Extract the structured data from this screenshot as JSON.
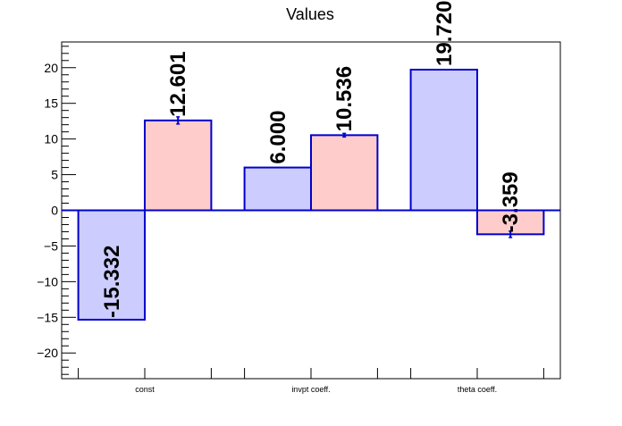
{
  "chart_data": {
    "type": "bar",
    "title": "Values",
    "categories": [
      "const",
      "invpt coeff.",
      "theta coeff."
    ],
    "series": [
      {
        "values": [
          -15.332,
          6.0,
          19.72
        ],
        "labels": [
          "-15.332",
          "6.000",
          "19.720"
        ],
        "errors": [
          0,
          0,
          0
        ],
        "fill": "#ccccff"
      },
      {
        "values": [
          12.601,
          10.536,
          -3.359
        ],
        "labels": [
          "12.601",
          "10.536",
          "-3.359"
        ],
        "errors": [
          0.5,
          0.25,
          0.45
        ],
        "fill": "#ffcccc"
      }
    ],
    "ylim": [
      -23.6,
      23.6
    ],
    "yticks": [
      -20,
      -15,
      -10,
      -5,
      0,
      5,
      10,
      15,
      20
    ],
    "ytick_labels": [
      "−20",
      "−15",
      "−10",
      "−5",
      "0",
      "5",
      "10",
      "15",
      "20"
    ],
    "xlabel": "",
    "ylabel": "",
    "grid": false,
    "legend": "none",
    "bar_edge_color": "#0000cc",
    "label_color": "#000000"
  }
}
